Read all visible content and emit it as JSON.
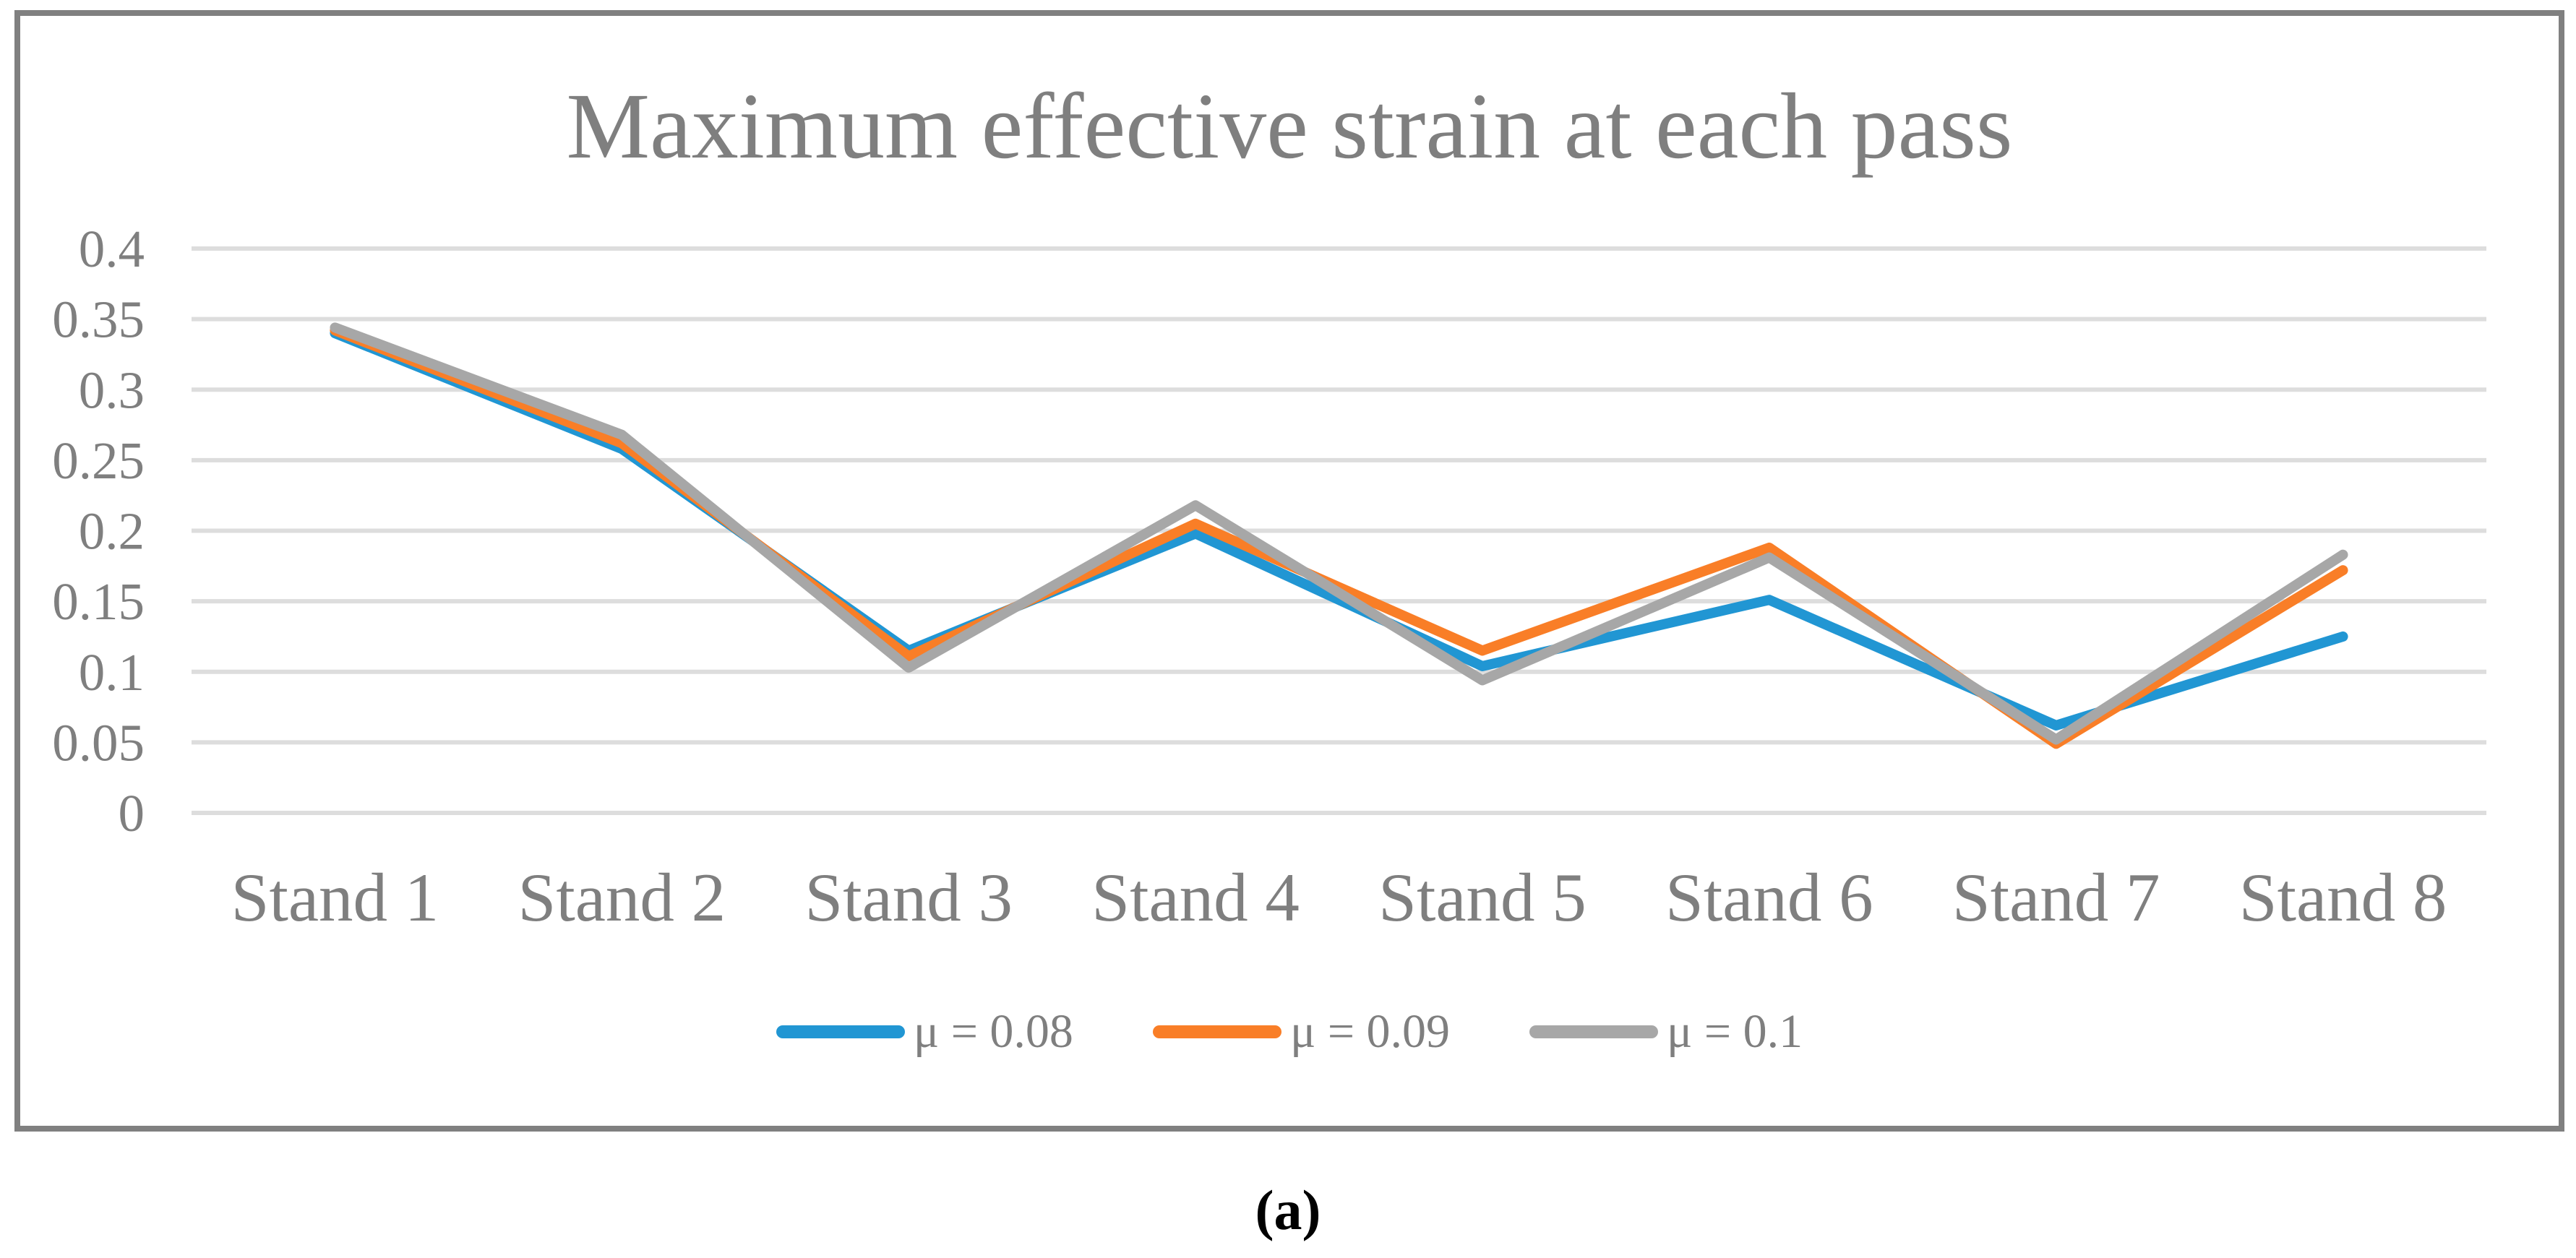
{
  "chart_data": {
    "type": "line",
    "title": "Maximum effective strain at each pass",
    "categories": [
      "Stand 1",
      "Stand 2",
      "Stand 3",
      "Stand 4",
      "Stand 5",
      "Stand 6",
      "Stand 7",
      "Stand 8"
    ],
    "series": [
      {
        "name": "μ = 0.08",
        "color": "#2196D3",
        "values": [
          0.34,
          0.258,
          0.115,
          0.198,
          0.104,
          0.151,
          0.062,
          0.125
        ]
      },
      {
        "name": "μ = 0.09",
        "color": "#F97E27",
        "values": [
          0.342,
          0.262,
          0.111,
          0.205,
          0.115,
          0.188,
          0.049,
          0.172
        ]
      },
      {
        "name": "μ = 0.1",
        "color": "#A7A7A7",
        "values": [
          0.344,
          0.268,
          0.103,
          0.218,
          0.094,
          0.181,
          0.052,
          0.183
        ]
      }
    ],
    "ylim": [
      0,
      0.4
    ],
    "yticks": [
      "0",
      "0.05",
      "0.1",
      "0.15",
      "0.2",
      "0.25",
      "0.3",
      "0.35",
      "0.4"
    ],
    "xlabel": "",
    "ylabel": "",
    "grid": true,
    "legend_position": "bottom"
  },
  "caption": "(a)",
  "colors": {
    "gridline": "#DDDDDD",
    "axis_text": "#7F7F7F",
    "title_text": "#7F7F7F",
    "frame": "#808080",
    "caption_text": "#000000",
    "background": "#FFFFFF"
  }
}
